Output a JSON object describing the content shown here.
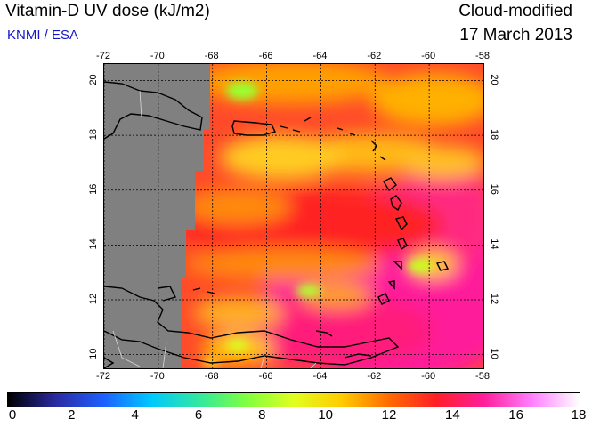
{
  "header": {
    "title": "Vitamin-D UV dose (kJ/m2)",
    "org": "KNMI / ESA",
    "mode": "Cloud-modified",
    "date": "17 March 2013"
  },
  "map": {
    "lon_ticks": [
      "-72",
      "-70",
      "-68",
      "-66",
      "-64",
      "-62",
      "-60",
      "-58"
    ],
    "lat_ticks": [
      "20",
      "18",
      "16",
      "14",
      "12",
      "10"
    ],
    "lon_range": [
      -72,
      -58
    ],
    "lat_range": [
      9.5,
      20.6
    ],
    "no_data_color": "#808080"
  },
  "colorbar": {
    "labels": [
      "0",
      "2",
      "4",
      "6",
      "8",
      "10",
      "12",
      "14",
      "16",
      "18"
    ],
    "range": [
      0,
      18
    ],
    "colors": [
      "#000000",
      "#2a2aa0",
      "#1e60ff",
      "#00c8ff",
      "#30e8a0",
      "#80ff40",
      "#e0ff20",
      "#ffcc00",
      "#ff6a00",
      "#ff1e28",
      "#ff1e9a",
      "#ff80ff",
      "#ffffff"
    ]
  }
}
